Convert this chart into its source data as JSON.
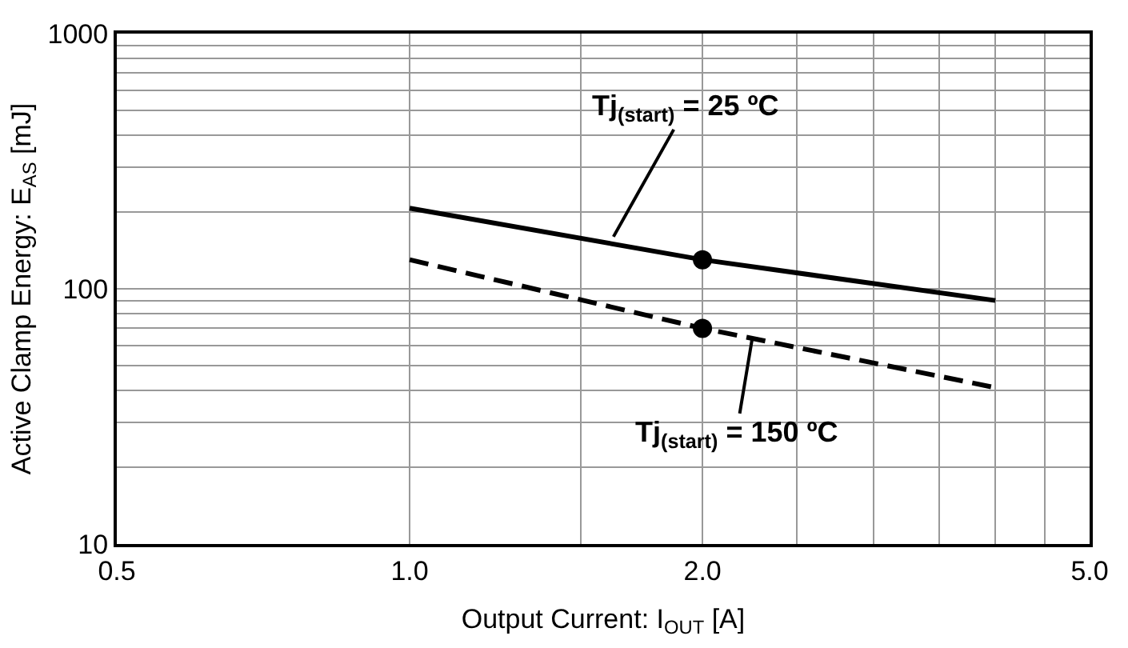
{
  "chart_data": {
    "type": "line",
    "xlabel": "Output Current: I$_{OUT}$ [A]",
    "ylabel": "Active Clamp Energy: E$_{AS}$ [mJ]",
    "log": "xy",
    "grid": true,
    "xlim": [
      0.5,
      5.0
    ],
    "xticks": [
      {
        "value": 0.5,
        "label": "0.5"
      },
      {
        "value": 1.0,
        "label": "1.0"
      },
      {
        "value": 2.0,
        "label": "2.0"
      },
      {
        "value": 5.0,
        "label": "5.0"
      }
    ],
    "ylim": [
      10,
      1000
    ],
    "yticks": [
      10,
      100,
      1000
    ],
    "series": [
      {
        "x": [
          1.0,
          2.0,
          4.0
        ],
        "values": [
          207,
          130,
          90
        ],
        "color": "#000000",
        "line_style": "solid",
        "marker": "none"
      },
      {
        "x": [
          1.0,
          2.0,
          4.0
        ],
        "values": [
          130,
          70,
          41
        ],
        "color": "#000000",
        "line_style": "dashed",
        "marker": "none"
      },
      {
        "type": "scatter",
        "x": [
          2.0,
          2.0
        ],
        "values": [
          130,
          70
        ],
        "color": "#000000",
        "marker": "circle"
      }
    ],
    "annotations": [
      {
        "text": "Tj$_{(start)}$ = 25 ºC",
        "x": 1.62,
        "y": 160
      },
      {
        "text": "Tj$_{(start)}$ = 150 ºC",
        "x": 2.25,
        "y": 64
      }
    ]
  }
}
